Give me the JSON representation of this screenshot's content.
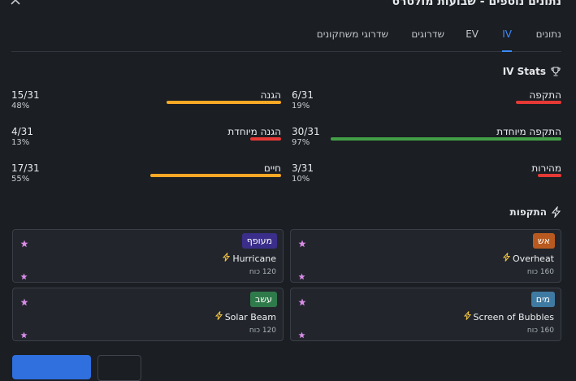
{
  "window": {
    "title": "נתונים נוספים - שבועות מולטרס"
  },
  "tabs": [
    {
      "label": "נתונים",
      "active": false
    },
    {
      "label": "IV",
      "active": true
    },
    {
      "label": "EV",
      "active": false
    },
    {
      "label": "שדרוגים",
      "active": false
    },
    {
      "label": "שדרוגי משחקונים",
      "active": false
    }
  ],
  "iv_section": {
    "title": "IV Stats",
    "icon": "trophy-icon"
  },
  "iv_stats": [
    {
      "name": "התקפה",
      "value": "6/31",
      "percent_label": "19%",
      "fraction": 0.19,
      "color": "#e53935"
    },
    {
      "name": "הגנה",
      "value": "15/31",
      "percent_label": "48%",
      "fraction": 0.48,
      "color": "#f9a825"
    },
    {
      "name": "התקפה מיוחדת",
      "value": "30/31",
      "percent_label": "97%",
      "fraction": 0.97,
      "color": "#43a047"
    },
    {
      "name": "הגנה מיוחדת",
      "value": "4/31",
      "percent_label": "13%",
      "fraction": 0.13,
      "color": "#e53935"
    },
    {
      "name": "מהירות",
      "value": "3/31",
      "percent_label": "10%",
      "fraction": 0.1,
      "color": "#e53935"
    },
    {
      "name": "חיים",
      "value": "17/31",
      "percent_label": "55%",
      "fraction": 0.55,
      "color": "#f9a825"
    }
  ],
  "moves_section": {
    "title": "התקפות",
    "icon": "lightning-icon"
  },
  "moves": [
    {
      "type": "אש",
      "type_color": "#b85a1f",
      "name": "Overheat",
      "pp": "160 כוח"
    },
    {
      "type": "מעופף",
      "type_color": "#3a2e8a",
      "name": "Hurricane",
      "pp": "120 כוח"
    },
    {
      "type": "מים",
      "type_color": "#3f7aa3",
      "name": "Screen of Bubbles",
      "pp": "160 כוח"
    },
    {
      "type": "עשב",
      "type_color": "#2f7a4a",
      "name": "Solar Beam",
      "pp": "120 כוח"
    }
  ],
  "colors": {
    "accent": "#3b8cff",
    "star": "#d98be8",
    "lightning": "#f5c542"
  }
}
